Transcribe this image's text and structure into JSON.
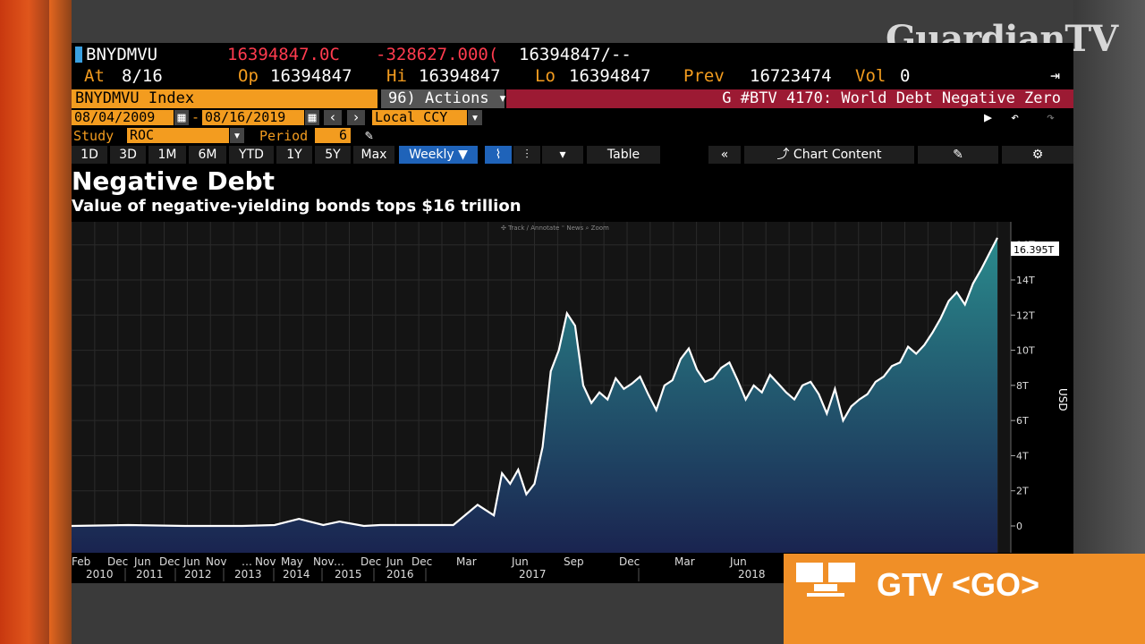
{
  "brand": {
    "logo_text": "GuardianTV"
  },
  "ticker": {
    "symbol": "BNYDMVU",
    "last": "16394847.0C",
    "change": "-328627.000(",
    "bid_ask": "16394847/--",
    "at_label": "At",
    "at_value": "8/16",
    "op_label": "Op",
    "op_value": "16394847",
    "hi_label": "Hi",
    "hi_value": "16394847",
    "lo_label": "Lo",
    "lo_value": "16394847",
    "prev_label": "Prev",
    "prev_value": "16723474",
    "vol_label": "Vol",
    "vol_value": "0"
  },
  "toolbar": {
    "index_name": "BNYDMVU Index",
    "actions_prefix": "96)",
    "actions_label": "Actions ▾",
    "headline": "G #BTV 4170: World Debt Negative Zero",
    "start_date": "08/04/2009",
    "end_date": "08/16/2019",
    "ccy": "Local CCY",
    "study_label": "Study",
    "study_value": "ROC",
    "period_label": "Period",
    "period_value": "6",
    "ranges": [
      "1D",
      "3D",
      "1M",
      "6M",
      "YTD",
      "1Y",
      "5Y",
      "Max"
    ],
    "frequency": "Weekly ▼",
    "table_label": "Table",
    "collapse_label": "«",
    "chart_content_label": "Chart Content",
    "mini_tools": "✣ Track  ∕ Annotate  ⁼ News  ⌕ Zoom"
  },
  "chart_data": {
    "type": "area",
    "title": "Negative Debt",
    "subtitle": "Value of negative-yielding bonds tops $16 trillion",
    "ylabel": "USD",
    "ylim": [
      0,
      16.8
    ],
    "y_ticks": [
      "0",
      "2T",
      "4T",
      "6T",
      "8T",
      "10T",
      "12T",
      "14T",
      "16T"
    ],
    "last_value_label": "16.395T",
    "x_ticks_top": [
      "Feb",
      "Dec",
      "Jun",
      "Dec",
      "Jun",
      "Nov",
      "…",
      "Nov",
      "May",
      "Nov",
      "…",
      "Dec",
      "Jun",
      "Dec",
      "Mar",
      "Jun",
      "Sep",
      "Dec",
      "Mar",
      "Jun"
    ],
    "x_ticks_bottom": [
      "2010",
      "2011",
      "2012",
      "2013",
      "2014",
      "2015",
      "2016",
      "2017",
      "2018"
    ],
    "x_range": [
      "2010-02",
      "2019-08"
    ],
    "x": [
      "2010-02",
      "2010-09",
      "2011-04",
      "2011-11",
      "2012-03",
      "2012-06",
      "2012-09",
      "2012-11",
      "2013-02",
      "2013-04",
      "2013-07",
      "2013-10",
      "2014-01",
      "2014-04",
      "2014-06",
      "2014-07",
      "2014-08",
      "2014-09",
      "2014-10",
      "2014-11",
      "2014-12",
      "2015-01",
      "2015-02",
      "2015-03",
      "2015-04",
      "2015-05",
      "2015-06",
      "2015-07",
      "2015-08",
      "2015-09",
      "2015-10",
      "2015-11",
      "2015-12",
      "2016-01",
      "2016-02",
      "2016-03",
      "2016-04",
      "2016-05",
      "2016-06",
      "2016-07",
      "2016-08",
      "2016-09",
      "2016-10",
      "2016-11",
      "2016-12",
      "2017-01",
      "2017-02",
      "2017-03",
      "2017-04",
      "2017-05",
      "2017-06",
      "2017-07",
      "2017-08",
      "2017-09",
      "2017-10",
      "2017-11",
      "2017-12",
      "2018-01",
      "2018-02",
      "2018-03",
      "2018-04",
      "2018-05",
      "2018-06",
      "2018-07",
      "2018-08",
      "2018-09",
      "2018-10",
      "2018-11",
      "2018-12",
      "2019-01",
      "2019-02",
      "2019-03",
      "2019-04",
      "2019-05",
      "2019-06",
      "2019-07",
      "2019-08"
    ],
    "values": [
      0.0,
      0.05,
      0.0,
      0.0,
      0.05,
      0.4,
      0.05,
      0.25,
      0.0,
      0.05,
      0.05,
      0.05,
      0.05,
      1.2,
      0.6,
      3.0,
      2.4,
      3.2,
      1.8,
      2.4,
      4.5,
      8.8,
      10.0,
      12.1,
      11.4,
      8.0,
      7.0,
      7.6,
      7.2,
      8.4,
      7.8,
      8.1,
      8.5,
      7.5,
      6.6,
      8.0,
      8.3,
      9.5,
      10.1,
      8.9,
      8.2,
      8.4,
      9.0,
      9.3,
      8.3,
      7.2,
      8.0,
      7.6,
      8.6,
      8.1,
      7.6,
      7.2,
      8.0,
      8.2,
      7.5,
      6.4,
      7.8,
      6.0,
      6.8,
      7.2,
      7.5,
      8.2,
      8.5,
      9.1,
      9.3,
      10.2,
      9.8,
      10.3,
      11.0,
      11.8,
      12.8,
      13.3,
      12.6,
      13.8,
      14.6,
      15.5,
      16.4
    ],
    "series": [
      {
        "values": "see values"
      }
    ],
    "grid": true,
    "legend": "none",
    "fill_color_top": "#2a8a8c",
    "fill_color_bottom": "#1a2450",
    "line_color": "#ffffff"
  },
  "promo": {
    "label": "GTV <GO>"
  }
}
